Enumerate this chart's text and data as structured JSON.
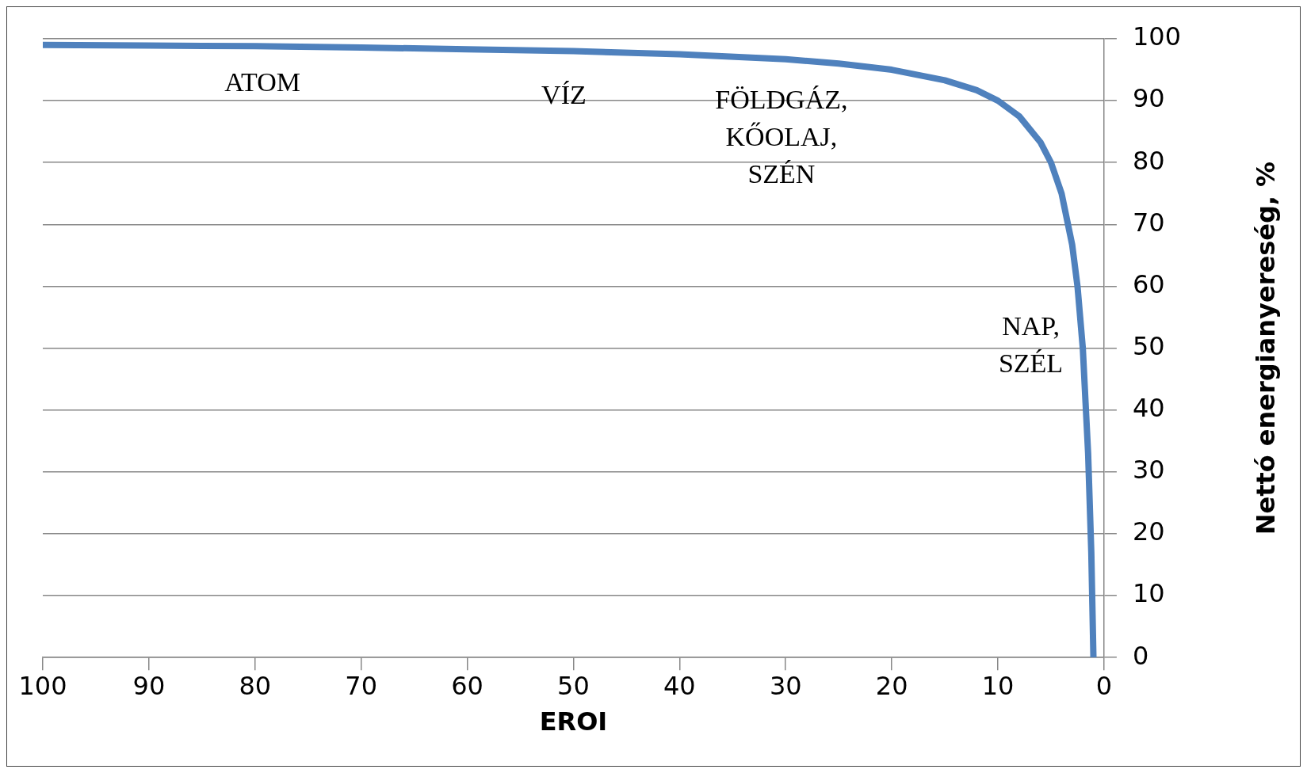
{
  "chart_data": {
    "type": "line",
    "xlabel": "EROI",
    "ylabel": "Nettó energianyereség, %",
    "x": [
      100,
      90,
      80,
      70,
      60,
      50,
      40,
      30,
      25,
      20,
      15,
      12,
      10,
      8,
      6,
      5,
      4,
      3,
      2.5,
      2,
      1.5,
      1.2,
      1
    ],
    "series": [
      {
        "color": "#4f81bd",
        "values": [
          99,
          98.9,
          98.8,
          98.6,
          98.3,
          98,
          97.5,
          96.7,
          96,
          95,
          93.3,
          91.7,
          90,
          87.5,
          83.3,
          80,
          75,
          66.7,
          60,
          50,
          33,
          17,
          0
        ]
      }
    ],
    "xlim": [
      100,
      0
    ],
    "xticks": [
      100,
      90,
      80,
      70,
      60,
      50,
      40,
      30,
      20,
      10,
      0
    ],
    "ylim": [
      0,
      100
    ],
    "yticks": [
      0,
      10,
      20,
      30,
      40,
      50,
      60,
      70,
      80,
      90,
      100
    ],
    "grid": "y",
    "legend": false,
    "marker": "none",
    "line_style": "solid",
    "annotations": [
      "ATOM",
      "VÍZ",
      "FÖLDGÁZ,\nKŐOLAJ,\nSZÉN",
      "NAP,\nSZÉL"
    ]
  }
}
